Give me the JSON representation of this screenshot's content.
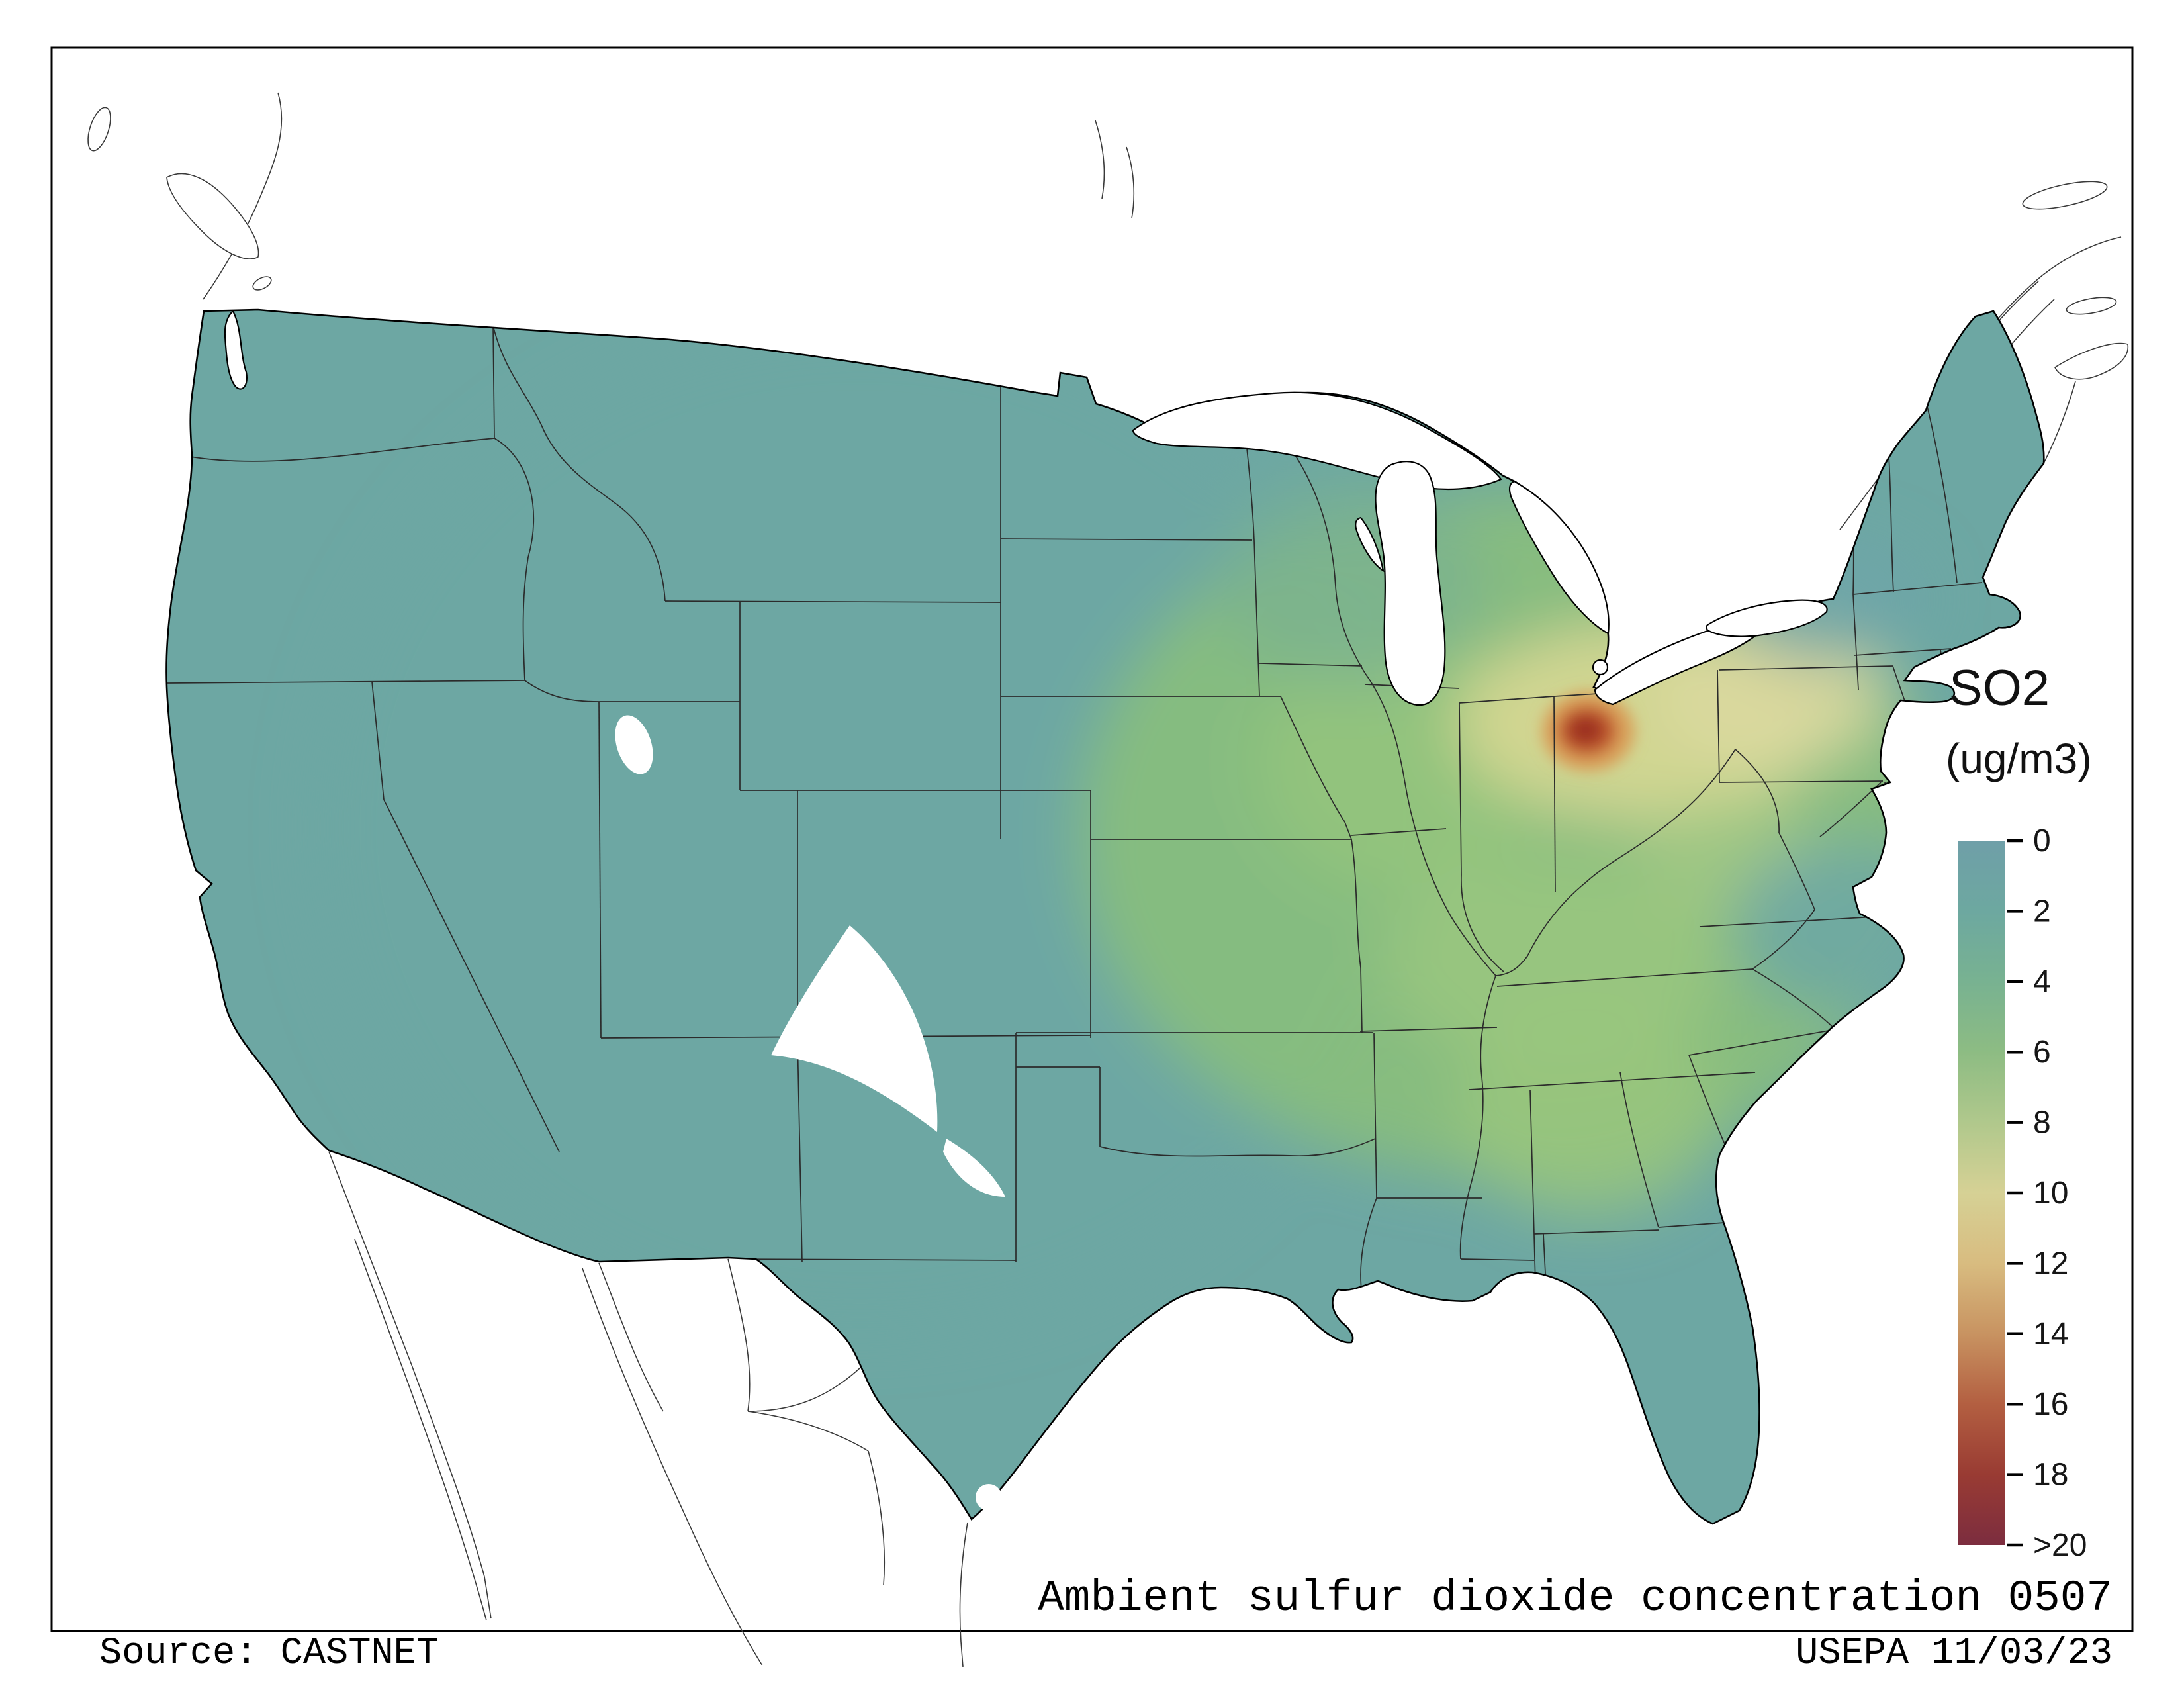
{
  "legend": {
    "title": "SO2",
    "units": "(ug/m3)",
    "ticks": [
      "0",
      "2",
      "4",
      "6",
      "8",
      "10",
      "12",
      "14",
      "16",
      "18",
      ">20"
    ],
    "gradient_colors": [
      "#6f9fa8",
      "#6da8a0",
      "#78b291",
      "#8dbc83",
      "#b0c88c",
      "#d6d195",
      "#d8bc80",
      "#c89361",
      "#b35f41",
      "#993b33",
      "#7c2d3f"
    ]
  },
  "map": {
    "base_color": "#6da7a3",
    "hotspot_color": "#9e3122",
    "water_color": "#ffffff",
    "border_color": "#000000"
  },
  "footer": {
    "title": "Ambient sulfur dioxide concentration 0507",
    "source": "Source: CASTNET",
    "agency_date": "USEPA 11/03/23"
  }
}
